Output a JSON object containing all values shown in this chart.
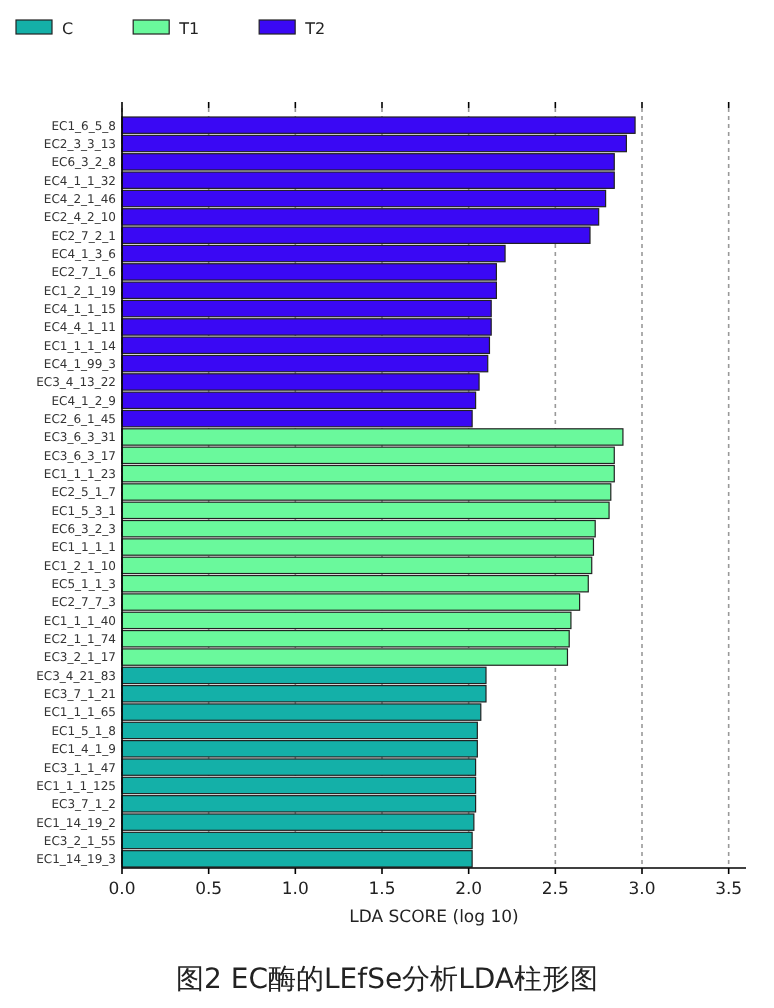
{
  "chart_data": {
    "type": "bar",
    "orientation": "horizontal",
    "xlabel": "LDA SCORE (log 10)",
    "categories": [
      "EC1_6_5_8",
      "EC2_3_3_13",
      "EC6_3_2_8",
      "EC4_1_1_32",
      "EC4_2_1_46",
      "EC2_4_2_10",
      "EC2_7_2_1",
      "EC4_1_3_6",
      "EC2_7_1_6",
      "EC1_2_1_19",
      "EC4_1_1_15",
      "EC4_4_1_11",
      "EC1_1_1_14",
      "EC4_1_99_3",
      "EC3_4_13_22",
      "EC4_1_2_9",
      "EC2_6_1_45",
      "EC3_6_3_31",
      "EC3_6_3_17",
      "EC1_1_1_23",
      "EC2_5_1_7",
      "EC1_5_3_1",
      "EC6_3_2_3",
      "EC1_1_1_1",
      "EC1_2_1_10",
      "EC5_1_1_3",
      "EC2_7_7_3",
      "EC1_1_1_40",
      "EC2_1_1_74",
      "EC3_2_1_17",
      "EC3_4_21_83",
      "EC3_7_1_21",
      "EC1_1_1_65",
      "EC1_5_1_8",
      "EC1_4_1_9",
      "EC3_1_1_47",
      "EC1_1_1_125",
      "EC3_7_1_2",
      "EC1_14_19_2",
      "EC3_2_1_55",
      "EC1_14_19_3"
    ],
    "series": [
      {
        "name": "C",
        "color": "#14b0a8",
        "values": [
          null,
          null,
          null,
          null,
          null,
          null,
          null,
          null,
          null,
          null,
          null,
          null,
          null,
          null,
          null,
          null,
          null,
          null,
          null,
          null,
          null,
          null,
          null,
          null,
          null,
          null,
          null,
          null,
          null,
          null,
          2.1,
          2.1,
          2.07,
          2.05,
          2.05,
          2.04,
          2.04,
          2.04,
          2.03,
          2.02,
          2.02
        ]
      },
      {
        "name": "T1",
        "color": "#6af99c",
        "values": [
          null,
          null,
          null,
          null,
          null,
          null,
          null,
          null,
          null,
          null,
          null,
          null,
          null,
          null,
          null,
          null,
          null,
          2.89,
          2.84,
          2.84,
          2.82,
          2.81,
          2.73,
          2.72,
          2.71,
          2.69,
          2.64,
          2.59,
          2.58,
          2.57,
          null,
          null,
          null,
          null,
          null,
          null,
          null,
          null,
          null,
          null,
          null
        ]
      },
      {
        "name": "T2",
        "color": "#3a08f4",
        "values": [
          2.96,
          2.91,
          2.84,
          2.84,
          2.79,
          2.75,
          2.7,
          2.21,
          2.16,
          2.16,
          2.13,
          2.13,
          2.12,
          2.11,
          2.06,
          2.04,
          2.02,
          null,
          null,
          null,
          null,
          null,
          null,
          null,
          null,
          null,
          null,
          null,
          null,
          null,
          null,
          null,
          null,
          null,
          null,
          null,
          null,
          null,
          null,
          null,
          null
        ]
      }
    ],
    "xlim": [
      0,
      3.6
    ],
    "xticks": [
      {
        "value": 0,
        "label": "0.0"
      },
      {
        "value": 0.5,
        "label": "0.5"
      },
      {
        "value": 1,
        "label": "1.0"
      },
      {
        "value": 1.5,
        "label": "1.5"
      },
      {
        "value": 2,
        "label": "2.0"
      },
      {
        "value": 2.5,
        "label": "2.5"
      },
      {
        "value": 3,
        "label": "3.0"
      },
      {
        "value": 3.5,
        "label": "3.5"
      }
    ],
    "grid": "x",
    "legend": "top left",
    "annotations": [
      "图2 EC酶的LEfSe分析LDA柱形图"
    ]
  }
}
